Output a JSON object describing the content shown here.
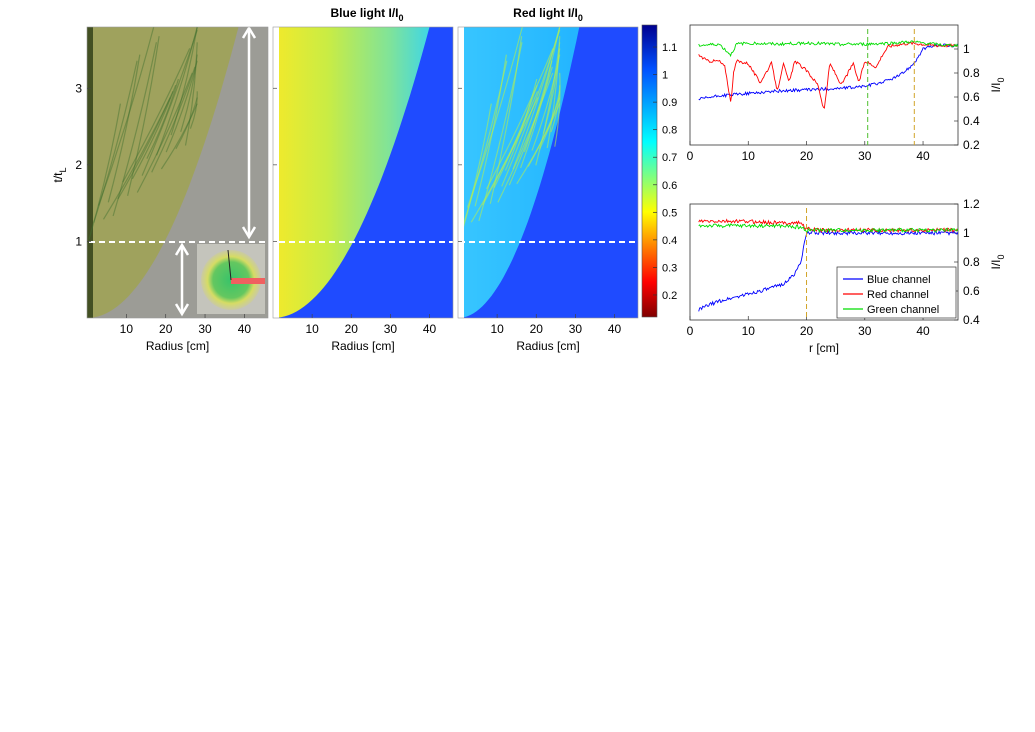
{
  "figure": {
    "panel_titles": {
      "blue": {
        "main": "Blue light I/I",
        "sub": "0"
      },
      "red": {
        "main": "Red light I/I",
        "sub": "0"
      }
    },
    "colorbar": {
      "ticks": [
        "1.1",
        "1",
        "0.9",
        "0.8",
        "0.7",
        "0.6",
        "0.5",
        "0.4",
        "0.3",
        "0.2"
      ],
      "tick_values": [
        1.1,
        1.0,
        0.9,
        0.8,
        0.7,
        0.6,
        0.5,
        0.4,
        0.3,
        0.2
      ],
      "range": [
        0.12,
        1.18
      ]
    },
    "time_axis": {
      "label_main": "t/t",
      "label_sub": "L",
      "ticks": [
        "1",
        "2",
        "3"
      ],
      "tick_values": [
        1,
        2,
        3
      ],
      "range": [
        0,
        3.8
      ]
    },
    "radius_axis": {
      "label": "Radius [cm]",
      "ticks": [
        "10",
        "20",
        "30",
        "40"
      ],
      "tick_values": [
        10,
        20,
        30,
        40
      ],
      "range": [
        0,
        46
      ]
    }
  },
  "chart_data": [
    {
      "type": "line",
      "title": "",
      "xlabel": "",
      "ylabel_main": "I/I",
      "ylabel_sub": "0",
      "xlim": [
        0,
        46
      ],
      "ylim": [
        0.2,
        1.2
      ],
      "x_ticks": [
        "0",
        "10",
        "20",
        "30",
        "40"
      ],
      "x_tick_values": [
        0,
        10,
        20,
        30,
        40
      ],
      "y_ticks": [
        "0.2",
        "0.4",
        "0.6",
        "0.8",
        "1"
      ],
      "y_tick_values": [
        0.2,
        0.4,
        0.6,
        0.8,
        1.0
      ],
      "markers_x": [
        30.5,
        38.5
      ],
      "series": [
        {
          "color": "#0000ff",
          "x": [
            1.5,
            5,
            10,
            15,
            20,
            25,
            28,
            30,
            32,
            34,
            36,
            37,
            38,
            39,
            40,
            42,
            44,
            46
          ],
          "values": [
            0.58,
            0.61,
            0.63,
            0.65,
            0.66,
            0.67,
            0.68,
            0.69,
            0.71,
            0.74,
            0.78,
            0.82,
            0.86,
            0.92,
            1.0,
            1.03,
            1.03,
            1.03
          ]
        },
        {
          "color": "#ff0000",
          "x": [
            1.5,
            3,
            5,
            6,
            7,
            7.5,
            8,
            10,
            12,
            14,
            15,
            16,
            17,
            18,
            20,
            22,
            23,
            24,
            26,
            28,
            29,
            30,
            32,
            33,
            34,
            36,
            38,
            40,
            42,
            44,
            46
          ],
          "values": [
            0.95,
            0.9,
            0.9,
            0.85,
            0.55,
            0.8,
            0.9,
            0.88,
            0.72,
            0.88,
            0.65,
            0.88,
            0.72,
            0.9,
            0.82,
            0.7,
            0.48,
            0.88,
            0.7,
            0.88,
            0.72,
            0.9,
            0.85,
            0.95,
            1.02,
            1.04,
            1.05,
            1.04,
            1.03,
            1.03,
            1.03
          ]
        },
        {
          "color": "#00dd00",
          "x": [
            1.5,
            5,
            7,
            8,
            10,
            15,
            20,
            25,
            30,
            35,
            38,
            40,
            42,
            44,
            46
          ],
          "values": [
            1.03,
            1.04,
            0.95,
            1.04,
            1.05,
            1.04,
            1.05,
            1.04,
            1.04,
            1.05,
            1.06,
            1.05,
            1.04,
            1.03,
            1.03
          ]
        }
      ]
    },
    {
      "type": "line",
      "title": "",
      "xlabel": "r [cm]",
      "ylabel_main": "I/I",
      "ylabel_sub": "0",
      "xlim": [
        0,
        46
      ],
      "ylim": [
        0.4,
        1.2
      ],
      "x_ticks": [
        "0",
        "10",
        "20",
        "30",
        "40"
      ],
      "x_tick_values": [
        0,
        10,
        20,
        30,
        40
      ],
      "y_ticks": [
        "0.4",
        "0.6",
        "0.8",
        "1",
        "1.2"
      ],
      "y_tick_values": [
        0.4,
        0.6,
        0.8,
        1.0,
        1.2
      ],
      "markers_x": [
        20
      ],
      "legend_position": "bottom-right",
      "series": [
        {
          "name": "Blue channel",
          "color": "#0000ff",
          "x": [
            1.5,
            3,
            5,
            8,
            10,
            12,
            14,
            16,
            17,
            18,
            19,
            19.5,
            20,
            21,
            22,
            25,
            30,
            35,
            40,
            46
          ],
          "values": [
            0.47,
            0.5,
            0.53,
            0.56,
            0.58,
            0.6,
            0.62,
            0.65,
            0.68,
            0.72,
            0.8,
            0.9,
            0.99,
            1.01,
            1.0,
            1.0,
            1.0,
            1.0,
            1.0,
            1.0
          ]
        },
        {
          "name": "Red channel",
          "color": "#ff0000",
          "x": [
            1.5,
            5,
            10,
            15,
            19,
            20,
            22,
            25,
            30,
            35,
            40,
            46
          ],
          "values": [
            1.08,
            1.08,
            1.08,
            1.07,
            1.07,
            1.03,
            1.02,
            1.02,
            1.02,
            1.02,
            1.02,
            1.02
          ]
        },
        {
          "name": "Green channel",
          "color": "#00dd00",
          "x": [
            1.5,
            5,
            10,
            15,
            19,
            20,
            22,
            25,
            30,
            35,
            40,
            46
          ],
          "values": [
            1.05,
            1.05,
            1.05,
            1.05,
            1.04,
            1.02,
            1.02,
            1.02,
            1.02,
            1.02,
            1.02,
            1.02
          ]
        }
      ]
    }
  ]
}
